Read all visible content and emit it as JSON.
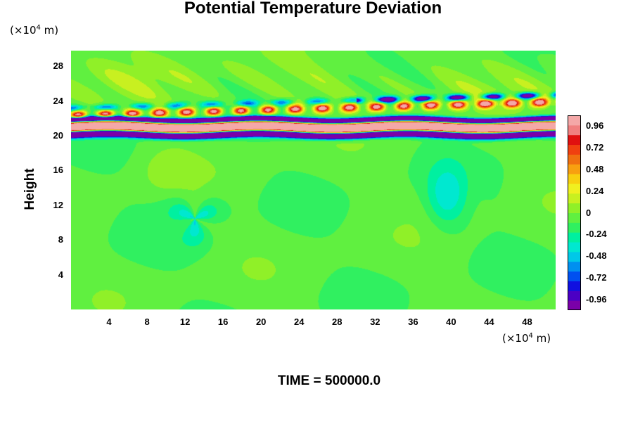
{
  "chart_data": {
    "type": "heatmap",
    "title": "Potential Temperature Deviation",
    "ylabel": "Height",
    "y_unit": {
      "prefix": "(×10",
      "exp": "4",
      "suffix": " m)"
    },
    "x_unit": {
      "prefix": "(×10",
      "exp": "4",
      "suffix": " m)"
    },
    "x_ticks": [
      "4",
      "8",
      "12",
      "16",
      "20",
      "24",
      "28",
      "32",
      "36",
      "40",
      "44",
      "48"
    ],
    "y_ticks": [
      "4",
      "8",
      "12",
      "16",
      "20",
      "24",
      "28"
    ],
    "xlim": [
      0,
      51
    ],
    "ylim": [
      0,
      29.8
    ],
    "colorbar": {
      "ticks": [
        "0.96",
        "0.72",
        "0.48",
        "0.24",
        "0",
        "-0.24",
        "-0.48",
        "-0.72",
        "-0.96"
      ],
      "range": [
        -1.08,
        1.08
      ],
      "colors": [
        "#7a00a8",
        "#4b00c4",
        "#1010e0",
        "#0050f0",
        "#0090f0",
        "#00c8e8",
        "#00e8d0",
        "#00f0a0",
        "#30f060",
        "#60f040",
        "#90f028",
        "#c8f020",
        "#f0f020",
        "#f8d010",
        "#f8a010",
        "#f07010",
        "#f04010",
        "#e01010",
        "#f08080",
        "#f4a8a8"
      ]
    },
    "field_description": {
      "background_value": -0.1,
      "features": [
        {
          "kind": "band",
          "y_center": 21.0,
          "value": 1.0
        },
        {
          "kind": "band",
          "y_center": 20.3,
          "value": -1.0
        },
        {
          "kind": "band",
          "y_center": 21.9,
          "value": -1.0
        },
        {
          "kind": "band",
          "y_center": 22.6,
          "value": 0.6
        },
        {
          "kind": "band",
          "y_center": 23.2,
          "value": 0.45
        }
      ]
    },
    "time_label": "TIME = 500000.0"
  }
}
